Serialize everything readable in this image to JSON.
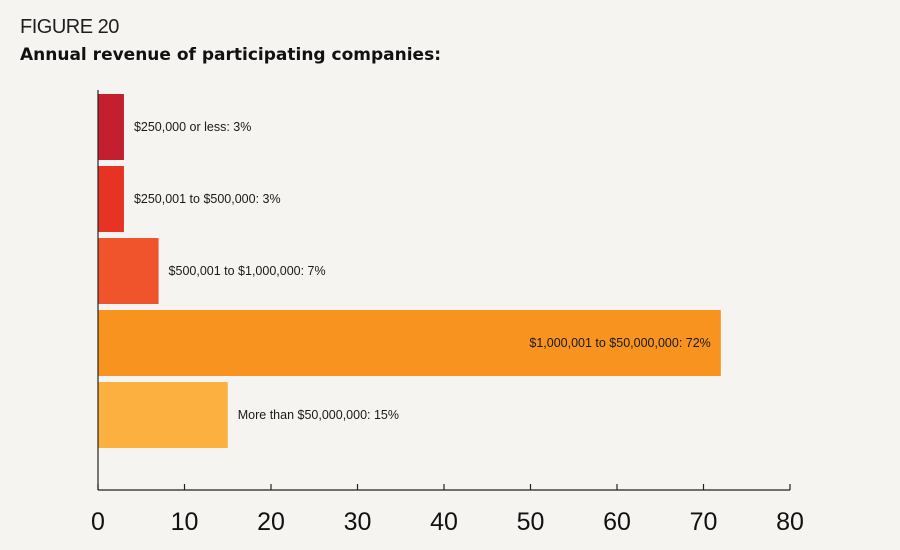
{
  "header": {
    "figure_label": "FIGURE 20",
    "title": "Annual revenue of participating companies:"
  },
  "chart_data": {
    "type": "bar",
    "orientation": "horizontal",
    "title": "Annual revenue of participating companies:",
    "categories": [
      "$250,000 or less",
      "$250,001 to $500,000",
      "$500,001 to $1,000,000",
      "$1,000,001 to $50,000,000",
      "More than $50,000,000"
    ],
    "values": [
      3,
      3,
      7,
      72,
      15
    ],
    "bar_labels": [
      "$250,000 or less: 3%",
      "$250,001 to $500,000: 3%",
      "$500,001 to $1,000,000: 7%",
      "$1,000,001 to $50,000,000: 72%",
      "More than $50,000,000: 15%"
    ],
    "colors": [
      "#c41f2f",
      "#e63324",
      "#f0542d",
      "#f7931e",
      "#fbb040"
    ],
    "xlim": [
      0,
      80
    ],
    "xticks": [
      "0",
      "10",
      "20",
      "30",
      "40",
      "50",
      "60",
      "70",
      "80"
    ],
    "xlabel": "",
    "ylabel": "",
    "grid": false,
    "legend": "none"
  }
}
